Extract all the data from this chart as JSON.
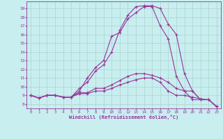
{
  "background_color": "#c8eef0",
  "grid_color": "#aad4cc",
  "line_color": "#993399",
  "xlabel": "Windchill (Refroidissement éolien,°C)",
  "xlim": [
    -0.5,
    23.5
  ],
  "ylim": [
    7.5,
    19.8
  ],
  "xticks": [
    0,
    1,
    2,
    3,
    4,
    5,
    6,
    7,
    8,
    9,
    10,
    11,
    12,
    13,
    14,
    15,
    16,
    17,
    18,
    19,
    20,
    21,
    22,
    23
  ],
  "yticks": [
    8,
    9,
    10,
    11,
    12,
    13,
    14,
    15,
    16,
    17,
    18,
    19
  ],
  "series": [
    [
      9.0,
      8.7,
      9.0,
      9.0,
      8.8,
      8.8,
      9.2,
      9.2,
      9.5,
      9.5,
      9.8,
      10.2,
      10.5,
      10.8,
      11.0,
      11.0,
      10.5,
      9.5,
      9.0,
      9.0,
      8.8,
      8.6,
      8.5,
      7.7
    ],
    [
      9.0,
      8.7,
      9.0,
      9.0,
      8.8,
      8.8,
      9.3,
      9.3,
      9.8,
      9.8,
      10.2,
      10.7,
      11.2,
      11.5,
      11.5,
      11.3,
      11.0,
      10.5,
      9.8,
      9.5,
      9.5,
      8.5,
      8.5,
      7.7
    ],
    [
      9.0,
      8.7,
      9.0,
      9.0,
      8.8,
      8.8,
      9.5,
      11.0,
      12.2,
      13.0,
      15.8,
      16.2,
      17.8,
      18.5,
      19.2,
      19.2,
      17.0,
      15.5,
      11.2,
      9.5,
      8.5,
      8.5,
      8.5,
      7.7
    ],
    [
      9.0,
      8.7,
      9.0,
      9.0,
      8.8,
      8.8,
      9.8,
      10.5,
      11.8,
      12.5,
      14.0,
      16.5,
      18.2,
      19.2,
      19.3,
      19.3,
      19.0,
      17.2,
      16.0,
      11.5,
      9.5,
      8.5,
      8.5,
      7.7
    ]
  ]
}
